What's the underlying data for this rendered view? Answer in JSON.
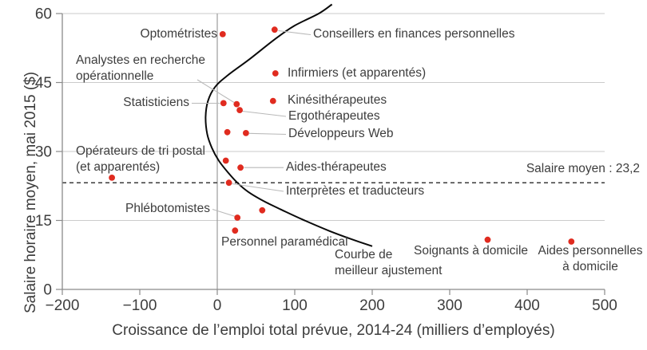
{
  "figure": {
    "background": "#ffffff",
    "text_color": "#3d3d3d"
  },
  "chart_data": {
    "type": "scatter",
    "xlabel": "Croissance de l’emploi total prévue, 2014-24 (milliers d’employés)",
    "ylabel": "Salaire horaire moyen, mai 2015 ($)",
    "xlim": [
      -200,
      500
    ],
    "ylim": [
      0,
      60
    ],
    "x_ticks": [
      {
        "v": -200,
        "t": "−200"
      },
      {
        "v": -100,
        "t": "−100"
      },
      {
        "v": 0,
        "t": "0"
      },
      {
        "v": 100,
        "t": "100"
      },
      {
        "v": 200,
        "t": "200"
      },
      {
        "v": 300,
        "t": "300"
      },
      {
        "v": 400,
        "t": "400"
      },
      {
        "v": 500,
        "t": "500"
      }
    ],
    "y_ticks": [
      {
        "v": 0,
        "t": "0"
      },
      {
        "v": 15,
        "t": "15"
      },
      {
        "v": 30,
        "t": "30"
      },
      {
        "v": 45,
        "t": "45"
      },
      {
        "v": 60,
        "t": "60"
      }
    ],
    "grid": "horizontal-only",
    "legend": "none",
    "point_color": "#e02b1f",
    "mean_line": {
      "value": 23.2,
      "label": "Salaire moyen : 23,2",
      "style": "dashed"
    },
    "points": [
      {
        "label": "Optométristes",
        "x": 7,
        "y": 55.5
      },
      {
        "label": "Conseillers en finances personnelles",
        "x": 74,
        "y": 56.5
      },
      {
        "label": "Infirmiers (et apparentés)",
        "x": 75,
        "y": 47
      },
      {
        "label": "Kinésithérapeutes",
        "x": 72,
        "y": 41
      },
      {
        "label": "Statisticiens",
        "x": 8,
        "y": 40.5
      },
      {
        "label": "Analystes en recherche opérationnelle",
        "x": 25,
        "y": 40.3
      },
      {
        "label": "Ergothérapeutes",
        "x": 29,
        "y": 39
      },
      {
        "label": "",
        "x": 13,
        "y": 34.2
      },
      {
        "label": "Développeurs Web",
        "x": 37,
        "y": 34
      },
      {
        "label": "",
        "x": 11,
        "y": 28
      },
      {
        "label": "Aides-thérapeutes",
        "x": 30,
        "y": 26.5
      },
      {
        "label": "Opérateurs de tri postal (et apparentés)",
        "x": -136,
        "y": 24.3
      },
      {
        "label": "Interprètes et traducteurs",
        "x": 15,
        "y": 23.2
      },
      {
        "label": "",
        "x": 58,
        "y": 17.2
      },
      {
        "label": "Phlébotomistes",
        "x": 26,
        "y": 15.6
      },
      {
        "label": "Personnel paramédical",
        "x": 23,
        "y": 12.8
      },
      {
        "label": "Soignants à domicile",
        "x": 349,
        "y": 10.8
      },
      {
        "label": "Aides personnelles à domicile",
        "x": 457,
        "y": 10.4
      }
    ],
    "fit_curve": {
      "label": "Courbe de meilleur ajustement",
      "points": [
        [
          148,
          62
        ],
        [
          131,
          60
        ],
        [
          99,
          57.3
        ],
        [
          75,
          54.5
        ],
        [
          41,
          50
        ],
        [
          13,
          46.5
        ],
        [
          -3,
          44
        ],
        [
          -12,
          41
        ],
        [
          -15,
          37.5
        ],
        [
          -13,
          33.8
        ],
        [
          -7,
          30.8
        ],
        [
          2,
          28
        ],
        [
          14,
          25.4
        ],
        [
          26,
          23.2
        ],
        [
          40,
          21.2
        ],
        [
          60,
          19.2
        ],
        [
          82,
          17.4
        ],
        [
          110,
          15.2
        ],
        [
          145,
          12.7
        ],
        [
          172,
          11
        ],
        [
          200,
          9.4
        ]
      ]
    }
  },
  "labels": {
    "optometristes": "Optométristes",
    "conseillers": "Conseillers en finances personnelles",
    "analystes_1": "Analystes en recherche",
    "analystes_2": "opérationnelle",
    "infirmiers": "Infirmiers (et apparentés)",
    "statisticiens": "Statisticiens",
    "kinesitherapeutes": "Kinésithérapeutes",
    "ergotherapeutes": "Ergothérapeutes",
    "developpeurs": "Développeurs Web",
    "operateurs_1": "Opérateurs de tri postal",
    "operateurs_2": "(et apparentés)",
    "aides_therapeutes": "Aides-thérapeutes",
    "interpretes": "Interprètes et traducteurs",
    "phlebotomistes": "Phlébotomistes",
    "personnel": "Personnel paramédical",
    "courbe_1": "Courbe de",
    "courbe_2": "meilleur ajustement",
    "soignants": "Soignants à domicile",
    "aides_personnelles_1": "Aides personnelles",
    "aides_personnelles_2": "à domicile"
  }
}
